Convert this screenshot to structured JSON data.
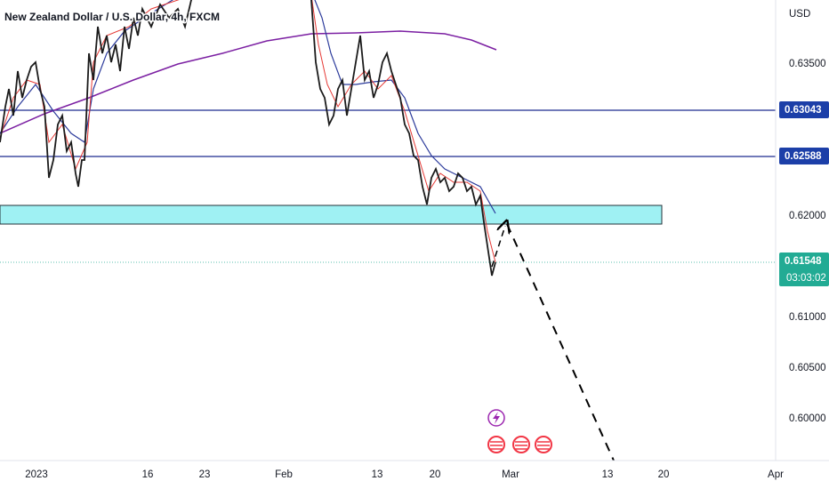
{
  "header": {
    "title": "New Zealand Dollar / U.S. Dollar, 4h, FXCM"
  },
  "price_axis": {
    "currency": "USD",
    "labels": [
      "0.63500",
      "0.62000",
      "0.61000",
      "0.60500",
      "0.60000"
    ]
  },
  "badges": [
    {
      "price": "0.63043"
    },
    {
      "price": "0.62588"
    },
    {
      "price": "0.61548",
      "countdown": "03:03:02"
    }
  ],
  "time_axis": [
    "2023",
    "16",
    "23",
    "Feb",
    "13",
    "20",
    "Mar",
    "13",
    "20",
    "Apr"
  ]
}
